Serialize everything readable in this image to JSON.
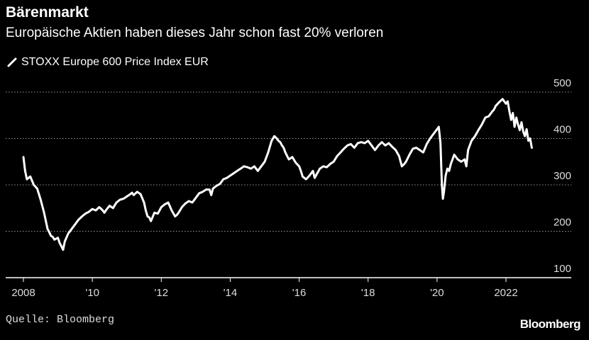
{
  "header": {
    "title": "Bärenmarkt",
    "subtitle": "Europäische Aktien haben dieses Jahr schon fast 20% verloren"
  },
  "footer": {
    "source": "Quelle: Bloomberg",
    "brand": "Bloomberg"
  },
  "colors": {
    "background": "#000000",
    "line": "#ffffff",
    "grid": "#9a9a9a",
    "text": "#ffffff"
  },
  "chart_data": {
    "type": "line",
    "title": "Bärenmarkt",
    "subtitle": "Europäische Aktien haben dieses Jahr schon fast 20% verloren",
    "xlabel": "",
    "ylabel": "",
    "xlim": [
      2008.0,
      2023.2
    ],
    "ylim": [
      100,
      500
    ],
    "yticks": [
      100,
      200,
      300,
      400,
      500
    ],
    "xtick_values": [
      2008,
      2010,
      2012,
      2014,
      2016,
      2018,
      2020,
      2022
    ],
    "xtick_labels": [
      "2008",
      "'10",
      "'12",
      "'14",
      "'16",
      "'18",
      "'20",
      "2022"
    ],
    "grid": "horizontal dotted",
    "legend_position": "top-left",
    "y_axis_side": "right",
    "series": [
      {
        "name": "STOXX Europe 600 Price Index EUR",
        "x": [
          2008.0,
          2008.05,
          2008.1,
          2008.2,
          2008.3,
          2008.4,
          2008.5,
          2008.6,
          2008.7,
          2008.75,
          2008.8,
          2008.85,
          2008.9,
          2009.0,
          2009.05,
          2009.1,
          2009.15,
          2009.2,
          2009.3,
          2009.4,
          2009.5,
          2009.6,
          2009.7,
          2009.8,
          2009.9,
          2010.0,
          2010.1,
          2010.2,
          2010.3,
          2010.35,
          2010.4,
          2010.5,
          2010.6,
          2010.7,
          2010.8,
          2010.9,
          2011.0,
          2011.1,
          2011.15,
          2011.2,
          2011.3,
          2011.4,
          2011.5,
          2011.55,
          2011.6,
          2011.65,
          2011.7,
          2011.8,
          2011.9,
          2012.0,
          2012.1,
          2012.2,
          2012.3,
          2012.4,
          2012.45,
          2012.5,
          2012.6,
          2012.7,
          2012.8,
          2012.9,
          2013.0,
          2013.1,
          2013.2,
          2013.3,
          2013.4,
          2013.45,
          2013.5,
          2013.6,
          2013.7,
          2013.8,
          2013.9,
          2014.0,
          2014.1,
          2014.2,
          2014.3,
          2014.4,
          2014.5,
          2014.6,
          2014.7,
          2014.8,
          2014.9,
          2015.0,
          2015.1,
          2015.2,
          2015.28,
          2015.35,
          2015.4,
          2015.45,
          2015.5,
          2015.55,
          2015.6,
          2015.7,
          2015.8,
          2015.9,
          2016.0,
          2016.05,
          2016.1,
          2016.2,
          2016.3,
          2016.4,
          2016.45,
          2016.5,
          2016.6,
          2016.7,
          2016.8,
          2016.9,
          2017.0,
          2017.1,
          2017.2,
          2017.3,
          2017.4,
          2017.5,
          2017.6,
          2017.7,
          2017.8,
          2017.9,
          2018.0,
          2018.1,
          2018.2,
          2018.3,
          2018.4,
          2018.5,
          2018.6,
          2018.7,
          2018.8,
          2018.9,
          2018.98,
          2019.05,
          2019.1,
          2019.2,
          2019.3,
          2019.4,
          2019.5,
          2019.6,
          2019.7,
          2019.8,
          2019.9,
          2020.0,
          2020.05,
          2020.1,
          2020.14,
          2020.17,
          2020.2,
          2020.25,
          2020.3,
          2020.35,
          2020.4,
          2020.5,
          2020.6,
          2020.7,
          2020.8,
          2020.85,
          2020.9,
          2021.0,
          2021.1,
          2021.2,
          2021.3,
          2021.4,
          2021.5,
          2021.6,
          2021.65,
          2021.7,
          2021.8,
          2021.9,
          2022.0,
          2022.05,
          2022.1,
          2022.15,
          2022.2,
          2022.25,
          2022.3,
          2022.35,
          2022.4,
          2022.45,
          2022.5,
          2022.55,
          2022.6,
          2022.65,
          2022.7,
          2022.75
        ],
        "values": [
          360,
          330,
          312,
          318,
          300,
          292,
          268,
          240,
          205,
          198,
          190,
          188,
          182,
          186,
          175,
          168,
          160,
          178,
          195,
          205,
          215,
          225,
          232,
          238,
          242,
          248,
          245,
          252,
          245,
          240,
          246,
          255,
          250,
          262,
          268,
          270,
          275,
          280,
          283,
          278,
          285,
          280,
          262,
          245,
          232,
          230,
          222,
          240,
          238,
          252,
          258,
          262,
          245,
          232,
          235,
          240,
          252,
          260,
          265,
          262,
          272,
          282,
          285,
          290,
          290,
          278,
          292,
          298,
          302,
          312,
          315,
          320,
          325,
          330,
          335,
          340,
          338,
          335,
          340,
          330,
          340,
          350,
          370,
          395,
          405,
          400,
          395,
          392,
          385,
          380,
          370,
          355,
          360,
          348,
          340,
          330,
          318,
          312,
          320,
          330,
          315,
          322,
          335,
          340,
          338,
          345,
          350,
          362,
          370,
          378,
          385,
          388,
          380,
          390,
          392,
          390,
          395,
          385,
          375,
          385,
          392,
          385,
          390,
          382,
          375,
          362,
          340,
          345,
          350,
          365,
          378,
          380,
          375,
          370,
          388,
          400,
          410,
          420,
          425,
          390,
          300,
          270,
          285,
          320,
          335,
          330,
          345,
          365,
          355,
          350,
          355,
          340,
          375,
          395,
          405,
          418,
          430,
          445,
          448,
          458,
          462,
          470,
          478,
          485,
          475,
          480,
          458,
          440,
          455,
          425,
          445,
          430,
          418,
          435,
          415,
          405,
          420,
          395,
          400,
          380
        ]
      }
    ]
  },
  "legend": {
    "label": "STOXX Europe 600 Price Index EUR"
  }
}
